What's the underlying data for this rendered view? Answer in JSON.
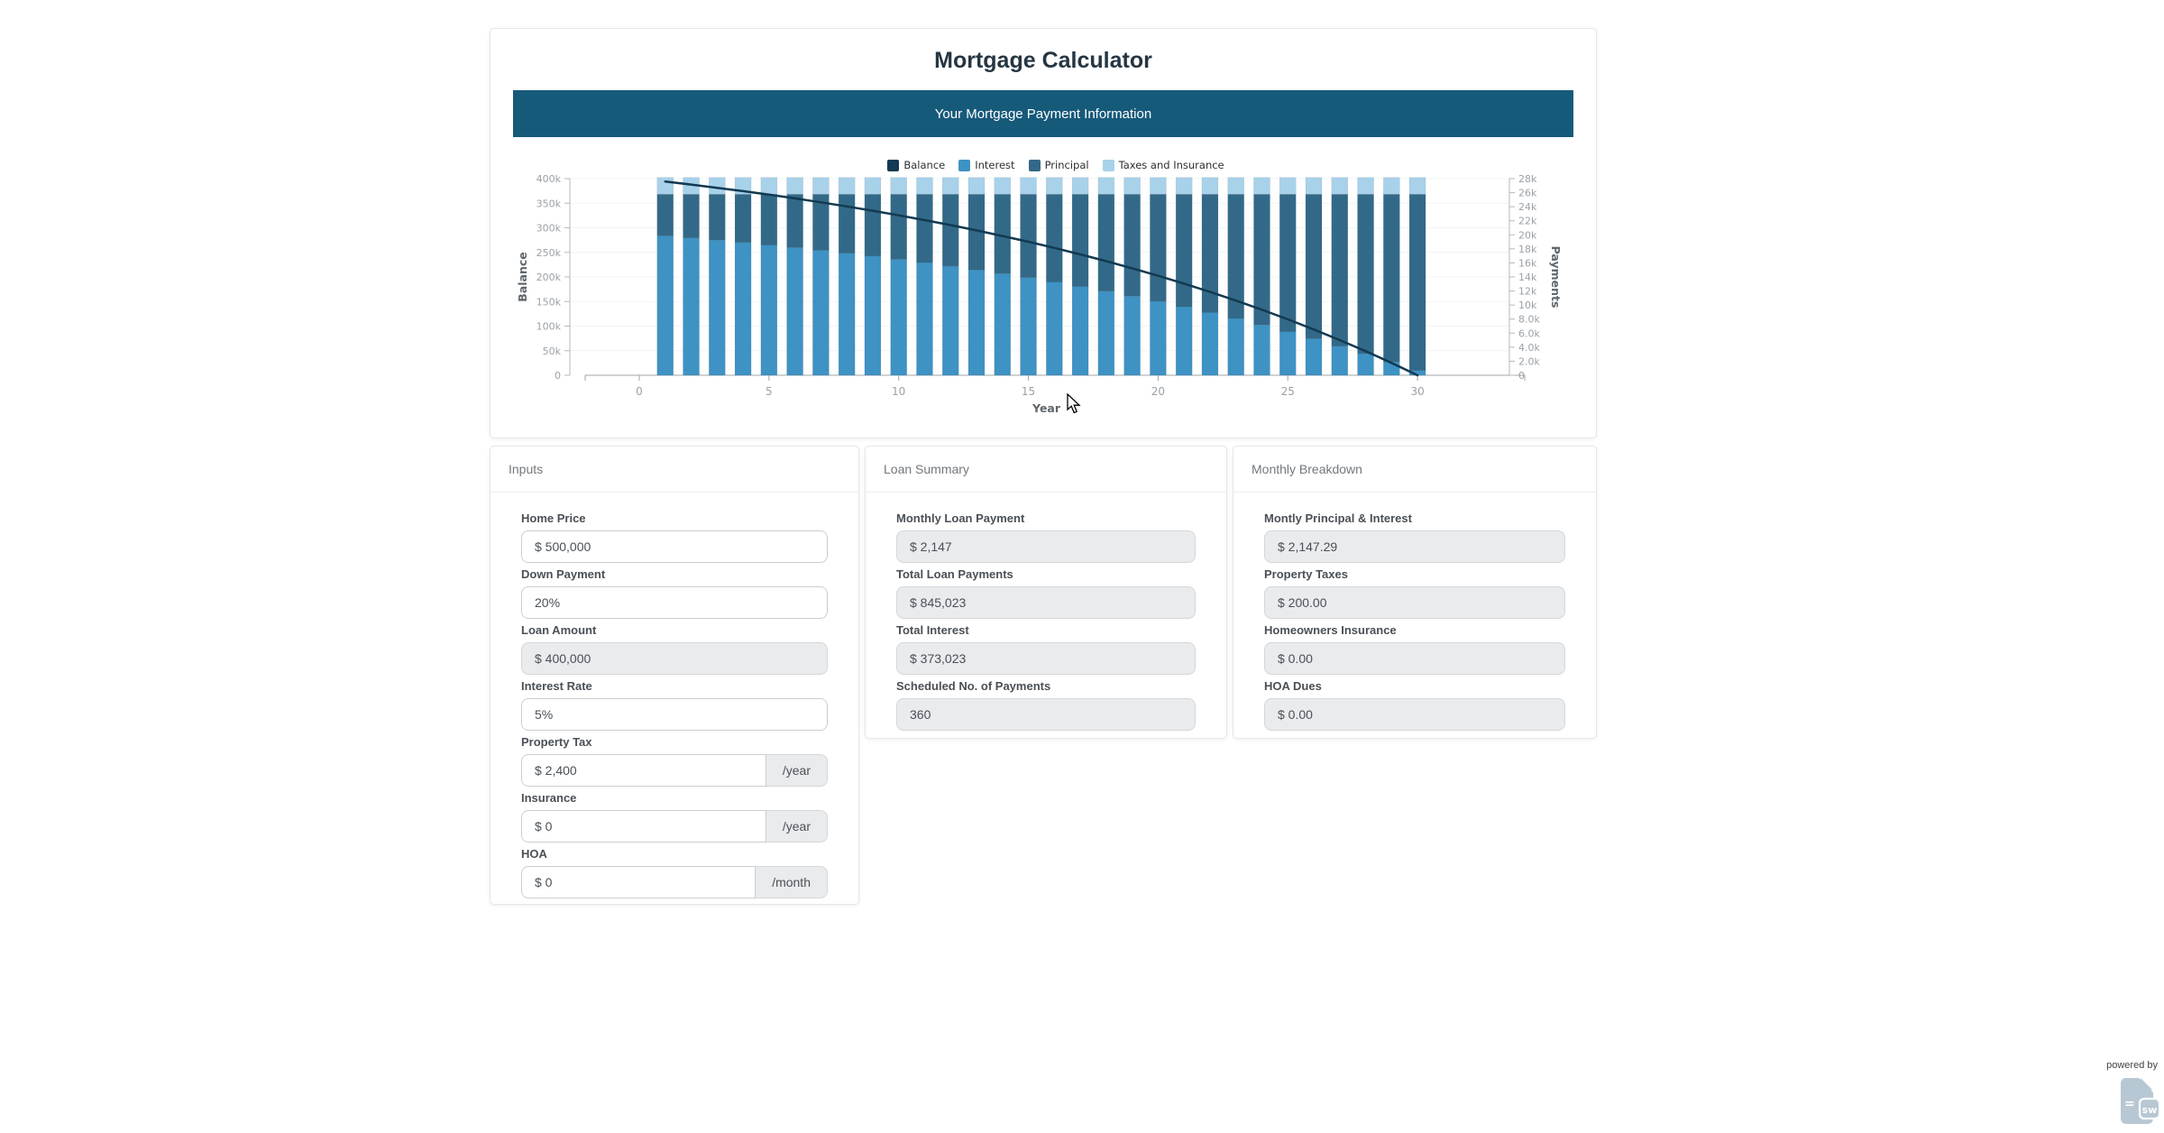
{
  "header": {
    "title": "Mortgage Calculator",
    "banner": "Your Mortgage Payment Information"
  },
  "chart_data": {
    "type": "bar",
    "subtype": "stacked-bars-with-line",
    "x_years": [
      1,
      2,
      3,
      4,
      5,
      6,
      7,
      8,
      9,
      10,
      11,
      12,
      13,
      14,
      15,
      16,
      17,
      18,
      19,
      20,
      21,
      22,
      23,
      24,
      25,
      26,
      27,
      28,
      29,
      30
    ],
    "series": [
      {
        "name": "Balance",
        "type": "line",
        "axis": "left",
        "color": "#123a52",
        "values": [
          394099,
          387896,
          381374,
          374520,
          367313,
          359736,
          351771,
          343399,
          334600,
          325353,
          315637,
          305422,
          294679,
          283390,
          271525,
          259049,
          245939,
          232158,
          217670,
          202443,
          186433,
          169604,
          151917,
          133322,
          113779,
          93232,
          71635,
          48938,
          25072,
          0
        ]
      },
      {
        "name": "Interest",
        "type": "bar",
        "axis": "right",
        "color": "#3e92c4",
        "values": [
          19866,
          19564,
          19245,
          18913,
          18560,
          18190,
          17802,
          17395,
          16968,
          16520,
          16051,
          15552,
          15024,
          14478,
          13902,
          13291,
          12657,
          11986,
          11279,
          10540,
          9757,
          8938,
          8080,
          7172,
          6224,
          5220,
          4170,
          3070,
          1901,
          695
        ]
      },
      {
        "name": "Principal",
        "type": "bar",
        "axis": "right",
        "color": "#336988",
        "values": [
          5901,
          6203,
          6522,
          6854,
          7207,
          7577,
          7965,
          8372,
          8799,
          9247,
          9716,
          10215,
          10743,
          11289,
          11865,
          12476,
          13110,
          13781,
          14488,
          15227,
          16010,
          16829,
          17687,
          18595,
          19543,
          20547,
          21597,
          22697,
          23866,
          25072
        ]
      },
      {
        "name": "Taxes and Insurance",
        "type": "bar",
        "axis": "right",
        "color": "#a8d1ea",
        "values": [
          2400,
          2400,
          2400,
          2400,
          2400,
          2400,
          2400,
          2400,
          2400,
          2400,
          2400,
          2400,
          2400,
          2400,
          2400,
          2400,
          2400,
          2400,
          2400,
          2400,
          2400,
          2400,
          2400,
          2400,
          2400,
          2400,
          2400,
          2400,
          2400,
          2400
        ]
      }
    ],
    "xlabel": "Year",
    "x_ticks": [
      {
        "v": 0,
        "label": "0"
      },
      {
        "v": 5,
        "label": "5"
      },
      {
        "v": 10,
        "label": "10"
      },
      {
        "v": 15,
        "label": "15"
      },
      {
        "v": 20,
        "label": "20"
      },
      {
        "v": 25,
        "label": "25"
      },
      {
        "v": 30,
        "label": "30"
      }
    ],
    "left_axis": {
      "label": "Balance",
      "max": 400000,
      "ticks": [
        {
          "v": 0,
          "label": "0"
        },
        {
          "v": 50000,
          "label": "50k"
        },
        {
          "v": 100000,
          "label": "100k"
        },
        {
          "v": 150000,
          "label": "150k"
        },
        {
          "v": 200000,
          "label": "200k"
        },
        {
          "v": 250000,
          "label": "250k"
        },
        {
          "v": 300000,
          "label": "300k"
        },
        {
          "v": 350000,
          "label": "350k"
        },
        {
          "v": 400000,
          "label": "400k"
        }
      ]
    },
    "right_axis": {
      "label": "Payments",
      "max": 28000,
      "ticks": [
        {
          "v": 0,
          "label": "0"
        },
        {
          "v": 2000,
          "label": "2.0k"
        },
        {
          "v": 4000,
          "label": "4.0k"
        },
        {
          "v": 6000,
          "label": "6.0k"
        },
        {
          "v": 8000,
          "label": "8.0k"
        },
        {
          "v": 10000,
          "label": "10k"
        },
        {
          "v": 12000,
          "label": "12k"
        },
        {
          "v": 14000,
          "label": "14k"
        },
        {
          "v": 16000,
          "label": "16k"
        },
        {
          "v": 18000,
          "label": "18k"
        },
        {
          "v": 20000,
          "label": "20k"
        },
        {
          "v": 22000,
          "label": "22k"
        },
        {
          "v": 24000,
          "label": "24k"
        },
        {
          "v": 26000,
          "label": "26k"
        },
        {
          "v": 28000,
          "label": "28k"
        }
      ]
    },
    "legend_position": "top-center",
    "grid": true
  },
  "cards": {
    "inputs": {
      "title": "Inputs",
      "fields": [
        {
          "label": "Home Price",
          "value": "$ 500,000",
          "editable": true
        },
        {
          "label": "Down Payment",
          "value": "20%",
          "editable": true
        },
        {
          "label": "Loan Amount",
          "value": "$ 400,000",
          "editable": false
        },
        {
          "label": "Interest Rate",
          "value": "5%",
          "editable": true
        },
        {
          "label": "Property Tax",
          "value": "$ 2,400",
          "addon": "/year",
          "editable": true
        },
        {
          "label": "Insurance",
          "value": "$ 0",
          "addon": "/year",
          "editable": true
        },
        {
          "label": "HOA",
          "value": "$ 0",
          "addon": "/month",
          "editable": true
        }
      ]
    },
    "loan_summary": {
      "title": "Loan Summary",
      "fields": [
        {
          "label": "Monthly Loan Payment",
          "value": "$ 2,147",
          "editable": false
        },
        {
          "label": "Total Loan Payments",
          "value": "$ 845,023",
          "editable": false
        },
        {
          "label": "Total Interest",
          "value": "$ 373,023",
          "editable": false
        },
        {
          "label": "Scheduled No. of Payments",
          "value": "360",
          "editable": false
        }
      ]
    },
    "monthly_breakdown": {
      "title": "Monthly Breakdown",
      "fields": [
        {
          "label": "Montly Principal & Interest",
          "value": "$ 2,147.29",
          "editable": false
        },
        {
          "label": "Property Taxes",
          "value": "$ 200.00",
          "editable": false
        },
        {
          "label": "Homeowners Insurance",
          "value": "$ 0.00",
          "editable": false
        },
        {
          "label": "HOA Dues",
          "value": "$ 0.00",
          "editable": false
        }
      ]
    }
  },
  "footer": {
    "powered_by": "powered by",
    "logo_equals": "=",
    "logo_letters": "sw"
  },
  "colors": {
    "banner": "#165a7a",
    "logo": "#b7c7d4"
  }
}
